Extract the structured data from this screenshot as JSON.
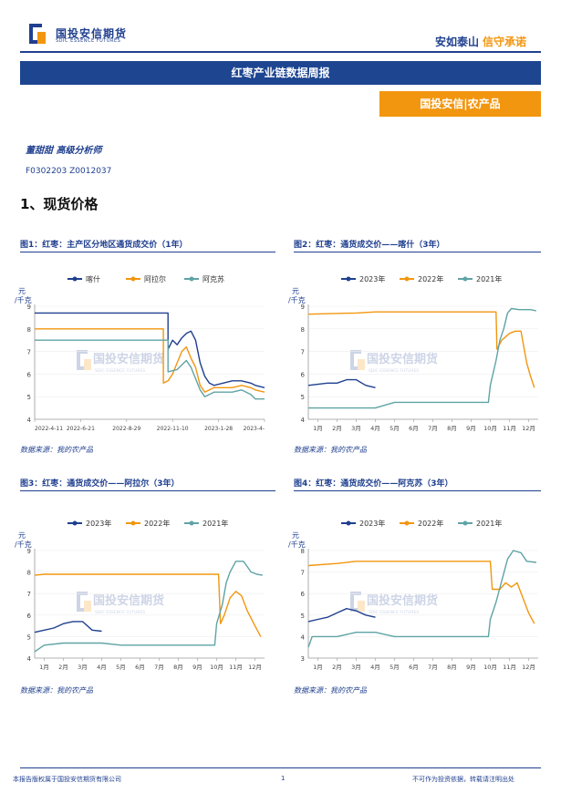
{
  "header": {
    "logo_cn": "国投安信期货",
    "logo_en": "SDIC ESSENCE FUTURES",
    "slogan_a": "安如泰山",
    "slogan_b": "信守承诺",
    "title": "红枣产业链数据周报",
    "badge": "国投安信|农产品"
  },
  "author": {
    "line": "董甜甜 高级分析师",
    "codes": "F0302203 Z0012037"
  },
  "section_title": "1、现货价格",
  "watermark": {
    "cn": "国投安信期货",
    "en": "SDIC ESSENCE FUTURES"
  },
  "colors": {
    "blue": "#1f3f8f",
    "orange": "#f2960f",
    "teal": "#5fa3a5"
  },
  "figures": [
    {
      "title": "图1：红枣：主产区分地区通货成交价（1年）",
      "source": "数据来源：我的农产品"
    },
    {
      "title": "图2：红枣：通货成交价——喀什（3年）",
      "source": "数据来源：我的农产品"
    },
    {
      "title": "图3：红枣：通货成交价——阿拉尔（3年）",
      "source": "数据来源：我的农产品"
    },
    {
      "title": "图4：红枣：通货成交价——阿克苏（3年）",
      "source": "数据来源：我的农产品"
    }
  ],
  "footer": {
    "left": "本报告版权属于国投安信期货有限公司",
    "page": "1",
    "right": "不可作为投资依据，转载请注明出处"
  },
  "chart_data": [
    {
      "type": "line",
      "unit": "元/千克",
      "ylim": [
        4,
        9
      ],
      "yticks": [
        4,
        5,
        6,
        7,
        8,
        9
      ],
      "xlim": [
        0,
        1
      ],
      "xticks": [
        {
          "x": 0,
          "label": "2022-4-11"
        },
        {
          "x": 0.2,
          "label": "2022-6-21"
        },
        {
          "x": 0.4,
          "label": "2022-8-29"
        },
        {
          "x": 0.6,
          "label": "2022-11-10"
        },
        {
          "x": 0.8,
          "label": "2023-1-28"
        },
        {
          "x": 1,
          "label": "2023-4-"
        }
      ],
      "legend_position": "top",
      "series": [
        {
          "name": "喀什",
          "color": "#1f3f8f",
          "points": [
            [
              0,
              8.7
            ],
            [
              0.58,
              8.7
            ],
            [
              0.58,
              7.1
            ],
            [
              0.6,
              7.5
            ],
            [
              0.62,
              7.3
            ],
            [
              0.64,
              7.6
            ],
            [
              0.66,
              7.8
            ],
            [
              0.68,
              7.9
            ],
            [
              0.7,
              7.5
            ],
            [
              0.72,
              6.5
            ],
            [
              0.74,
              5.9
            ],
            [
              0.76,
              5.6
            ],
            [
              0.78,
              5.5
            ],
            [
              0.82,
              5.6
            ],
            [
              0.86,
              5.7
            ],
            [
              0.9,
              5.7
            ],
            [
              0.94,
              5.6
            ],
            [
              0.96,
              5.5
            ],
            [
              1,
              5.4
            ]
          ]
        },
        {
          "name": "阿拉尔",
          "color": "#f2960f",
          "points": [
            [
              0,
              8.0
            ],
            [
              0.56,
              8.0
            ],
            [
              0.56,
              5.6
            ],
            [
              0.58,
              5.7
            ],
            [
              0.6,
              6.0
            ],
            [
              0.62,
              6.5
            ],
            [
              0.64,
              7.0
            ],
            [
              0.66,
              7.2
            ],
            [
              0.68,
              6.7
            ],
            [
              0.7,
              6.3
            ],
            [
              0.72,
              5.5
            ],
            [
              0.74,
              5.2
            ],
            [
              0.78,
              5.4
            ],
            [
              0.82,
              5.4
            ],
            [
              0.86,
              5.4
            ],
            [
              0.9,
              5.5
            ],
            [
              0.94,
              5.4
            ],
            [
              0.96,
              5.3
            ],
            [
              1,
              5.2
            ]
          ]
        },
        {
          "name": "阿克苏",
          "color": "#5fa3a5",
          "points": [
            [
              0,
              7.5
            ],
            [
              0.58,
              7.5
            ],
            [
              0.58,
              6.1
            ],
            [
              0.62,
              6.2
            ],
            [
              0.66,
              6.6
            ],
            [
              0.68,
              6.3
            ],
            [
              0.7,
              5.8
            ],
            [
              0.72,
              5.3
            ],
            [
              0.74,
              5.0
            ],
            [
              0.78,
              5.2
            ],
            [
              0.82,
              5.2
            ],
            [
              0.86,
              5.2
            ],
            [
              0.9,
              5.3
            ],
            [
              0.94,
              5.1
            ],
            [
              0.96,
              4.9
            ],
            [
              1,
              4.9
            ]
          ]
        }
      ]
    },
    {
      "type": "line",
      "unit": "元/千克",
      "ylim": [
        4,
        9
      ],
      "yticks": [
        4,
        5,
        6,
        7,
        8,
        9
      ],
      "xlim": [
        0.5,
        12.5
      ],
      "xticks": [
        {
          "x": 1,
          "label": "1月"
        },
        {
          "x": 2,
          "label": "2月"
        },
        {
          "x": 3,
          "label": "3月"
        },
        {
          "x": 4,
          "label": "4月"
        },
        {
          "x": 5,
          "label": "5月"
        },
        {
          "x": 6,
          "label": "6月"
        },
        {
          "x": 7,
          "label": "7月"
        },
        {
          "x": 8,
          "label": "8月"
        },
        {
          "x": 9,
          "label": "9月"
        },
        {
          "x": 10,
          "label": "10月"
        },
        {
          "x": 11,
          "label": "11月"
        },
        {
          "x": 12,
          "label": "12月"
        }
      ],
      "legend_position": "top",
      "series": [
        {
          "name": "2023年",
          "color": "#1f3f8f",
          "points": [
            [
              0.5,
              5.5
            ],
            [
              1,
              5.55
            ],
            [
              1.5,
              5.6
            ],
            [
              2,
              5.6
            ],
            [
              2.5,
              5.75
            ],
            [
              3,
              5.75
            ],
            [
              3.5,
              5.5
            ],
            [
              4,
              5.4
            ]
          ]
        },
        {
          "name": "2022年",
          "color": "#f2960f",
          "points": [
            [
              0.5,
              8.65
            ],
            [
              3,
              8.7
            ],
            [
              4,
              8.75
            ],
            [
              10.3,
              8.75
            ],
            [
              10.35,
              7.1
            ],
            [
              10.6,
              7.5
            ],
            [
              11,
              7.8
            ],
            [
              11.3,
              7.9
            ],
            [
              11.6,
              7.9
            ],
            [
              11.9,
              6.5
            ],
            [
              12.1,
              5.9
            ],
            [
              12.3,
              5.4
            ]
          ]
        },
        {
          "name": "2021年",
          "color": "#5fa3a5",
          "points": [
            [
              0.5,
              4.5
            ],
            [
              4,
              4.5
            ],
            [
              5,
              4.75
            ],
            [
              9.9,
              4.75
            ],
            [
              10,
              5.5
            ],
            [
              10.3,
              6.6
            ],
            [
              10.5,
              7.5
            ],
            [
              10.7,
              8.0
            ],
            [
              10.9,
              8.7
            ],
            [
              11.1,
              8.9
            ],
            [
              11.5,
              8.85
            ],
            [
              12.1,
              8.85
            ],
            [
              12.4,
              8.8
            ]
          ]
        }
      ]
    },
    {
      "type": "line",
      "unit": "元/千克",
      "ylim": [
        4,
        9
      ],
      "yticks": [
        4,
        5,
        6,
        7,
        8,
        9
      ],
      "xlim": [
        0.5,
        12.5
      ],
      "xticks": [
        {
          "x": 1,
          "label": "1月"
        },
        {
          "x": 2,
          "label": "2月"
        },
        {
          "x": 3,
          "label": "3月"
        },
        {
          "x": 4,
          "label": "4月"
        },
        {
          "x": 5,
          "label": "5月"
        },
        {
          "x": 6,
          "label": "6月"
        },
        {
          "x": 7,
          "label": "7月"
        },
        {
          "x": 8,
          "label": "8月"
        },
        {
          "x": 9,
          "label": "9月"
        },
        {
          "x": 10,
          "label": "10月"
        },
        {
          "x": 11,
          "label": "11月"
        },
        {
          "x": 12,
          "label": "12月"
        }
      ],
      "legend_position": "top",
      "series": [
        {
          "name": "2023年",
          "color": "#1f3f8f",
          "points": [
            [
              0.5,
              5.2
            ],
            [
              1,
              5.3
            ],
            [
              1.5,
              5.4
            ],
            [
              2,
              5.6
            ],
            [
              2.5,
              5.7
            ],
            [
              3,
              5.7
            ],
            [
              3.5,
              5.3
            ],
            [
              4,
              5.25
            ]
          ]
        },
        {
          "name": "2022年",
          "color": "#f2960f",
          "points": [
            [
              0.5,
              7.85
            ],
            [
              1,
              7.9
            ],
            [
              4,
              7.9
            ],
            [
              10.1,
              7.9
            ],
            [
              10.2,
              5.6
            ],
            [
              10.4,
              6.0
            ],
            [
              10.7,
              6.8
            ],
            [
              11,
              7.1
            ],
            [
              11.3,
              6.9
            ],
            [
              11.6,
              6.2
            ],
            [
              12,
              5.5
            ],
            [
              12.3,
              5.0
            ]
          ]
        },
        {
          "name": "2021年",
          "color": "#5fa3a5",
          "points": [
            [
              0.5,
              4.3
            ],
            [
              1,
              4.6
            ],
            [
              2,
              4.7
            ],
            [
              4,
              4.7
            ],
            [
              5,
              4.6
            ],
            [
              9.9,
              4.6
            ],
            [
              10,
              5.6
            ],
            [
              10.3,
              6.5
            ],
            [
              10.5,
              7.5
            ],
            [
              10.7,
              8.0
            ],
            [
              11,
              8.5
            ],
            [
              11.4,
              8.5
            ],
            [
              11.8,
              8.0
            ],
            [
              12.1,
              7.9
            ],
            [
              12.4,
              7.85
            ]
          ]
        }
      ]
    },
    {
      "type": "line",
      "unit": "元/千克",
      "ylim": [
        3,
        8
      ],
      "yticks": [
        3,
        4,
        5,
        6,
        7,
        8
      ],
      "xlim": [
        0.5,
        12.5
      ],
      "xticks": [
        {
          "x": 1,
          "label": "1月"
        },
        {
          "x": 2,
          "label": "2月"
        },
        {
          "x": 3,
          "label": "3月"
        },
        {
          "x": 4,
          "label": "4月"
        },
        {
          "x": 5,
          "label": "5月"
        },
        {
          "x": 6,
          "label": "6月"
        },
        {
          "x": 7,
          "label": "7月"
        },
        {
          "x": 8,
          "label": "8月"
        },
        {
          "x": 9,
          "label": "9月"
        },
        {
          "x": 10,
          "label": "10月"
        },
        {
          "x": 11,
          "label": "11月"
        },
        {
          "x": 12,
          "label": "12月"
        }
      ],
      "legend_position": "top",
      "series": [
        {
          "name": "2023年",
          "color": "#1f3f8f",
          "points": [
            [
              0.5,
              4.7
            ],
            [
              1,
              4.8
            ],
            [
              1.5,
              4.9
            ],
            [
              2,
              5.1
            ],
            [
              2.5,
              5.3
            ],
            [
              3,
              5.2
            ],
            [
              3.5,
              5.0
            ],
            [
              4,
              4.9
            ]
          ]
        },
        {
          "name": "2022年",
          "color": "#f2960f",
          "points": [
            [
              0.5,
              7.3
            ],
            [
              2,
              7.4
            ],
            [
              3,
              7.5
            ],
            [
              10,
              7.5
            ],
            [
              10.1,
              6.2
            ],
            [
              10.5,
              6.2
            ],
            [
              10.8,
              6.5
            ],
            [
              11.1,
              6.3
            ],
            [
              11.4,
              6.5
            ],
            [
              11.7,
              5.8
            ],
            [
              12,
              5.1
            ],
            [
              12.3,
              4.6
            ]
          ]
        },
        {
          "name": "2021年",
          "color": "#5fa3a5",
          "points": [
            [
              0.5,
              3.5
            ],
            [
              0.7,
              4.0
            ],
            [
              2,
              4.0
            ],
            [
              3,
              4.2
            ],
            [
              4,
              4.2
            ],
            [
              5,
              4.0
            ],
            [
              9.9,
              4.0
            ],
            [
              10,
              4.8
            ],
            [
              10.3,
              5.6
            ],
            [
              10.6,
              6.6
            ],
            [
              10.9,
              7.6
            ],
            [
              11.2,
              8.0
            ],
            [
              11.6,
              7.9
            ],
            [
              11.9,
              7.5
            ],
            [
              12.4,
              7.45
            ]
          ]
        }
      ]
    }
  ]
}
